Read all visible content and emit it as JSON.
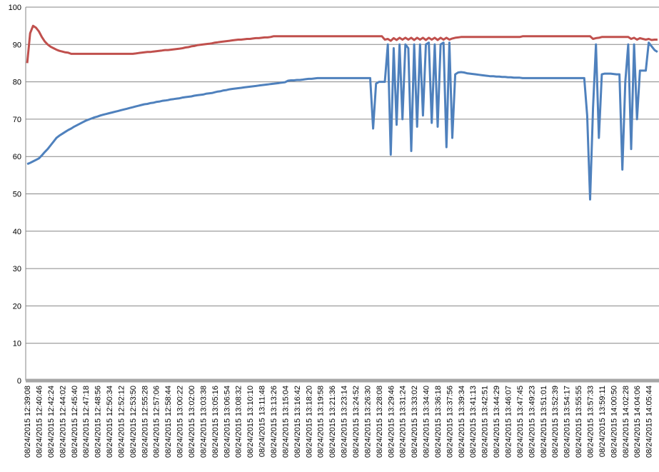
{
  "chart_data": {
    "type": "line",
    "categories": [
      "08/24/2015 12:39:08",
      null,
      null,
      null,
      "08/24/2015 12:40:46",
      null,
      null,
      null,
      "08/24/2015 12:42:24",
      null,
      null,
      null,
      "08/24/2015 12:44:02",
      null,
      null,
      null,
      "08/24/2015 12:45:40",
      null,
      null,
      null,
      "08/24/2015 12:47:18",
      null,
      null,
      null,
      "08/24/2015 12:48:56",
      null,
      null,
      null,
      "08/24/2015 12:50:34",
      null,
      null,
      null,
      "08/24/2015 12:52:12",
      null,
      null,
      null,
      "08/24/2015 12:53:50",
      null,
      null,
      null,
      "08/24/2015 12:55:28",
      null,
      null,
      null,
      "08/24/2015 12:57:06",
      null,
      null,
      null,
      "08/24/2015 12:58:44",
      null,
      null,
      null,
      "08/24/2015 13:00:22",
      null,
      null,
      null,
      "08/24/2015 13:02:00",
      null,
      null,
      null,
      "08/24/2015 13:03:38",
      null,
      null,
      null,
      "08/24/2015 13:05:16",
      null,
      null,
      null,
      "08/24/2015 13:06:54",
      null,
      null,
      null,
      "08/24/2015 13:08:32",
      null,
      null,
      null,
      "08/24/2015 13:10:10",
      null,
      null,
      null,
      "08/24/2015 13:11:48",
      null,
      null,
      null,
      "08/24/2015 13:13:26",
      null,
      null,
      null,
      "08/24/2015 13:15:04",
      null,
      null,
      null,
      "08/24/2015 13:16:42",
      null,
      null,
      null,
      "08/24/2015 13:18:20",
      null,
      null,
      null,
      "08/24/2015 13:19:58",
      null,
      null,
      null,
      "08/24/2015 13:21:36",
      null,
      null,
      null,
      "08/24/2015 13:23:14",
      null,
      null,
      null,
      "08/24/2015 13:24:52",
      null,
      null,
      null,
      "08/24/2015 13:26:30",
      null,
      null,
      null,
      "08/24/2015 13:28:08",
      null,
      null,
      null,
      "08/24/2015 13:29:46",
      null,
      null,
      null,
      "08/24/2015 13:31:24",
      null,
      null,
      null,
      "08/24/2015 13:33:02",
      null,
      null,
      null,
      "08/24/2015 13:34:40",
      null,
      null,
      null,
      "08/24/2015 13:36:18",
      null,
      null,
      null,
      "08/24/2015 13:37:56",
      null,
      null,
      null,
      "08/24/2015 13:39:34",
      null,
      null,
      null,
      "08/24/2015 13:41:13",
      null,
      null,
      null,
      "08/24/2015 13:42:51",
      null,
      null,
      null,
      "08/24/2015 13:44:29",
      null,
      null,
      null,
      "08/24/2015 13:46:07",
      null,
      null,
      null,
      "08/24/2015 13:47:45",
      null,
      null,
      null,
      "08/24/2015 13:49:23",
      null,
      null,
      null,
      "08/24/2015 13:51:01",
      null,
      null,
      null,
      "08/24/2015 13:52:39",
      null,
      null,
      null,
      "08/24/2015 13:54:17",
      null,
      null,
      null,
      "08/24/2015 13:55:55",
      null,
      null,
      null,
      "08/24/2015 13:57:33",
      null,
      null,
      null,
      "08/24/2015 13:59:11",
      null,
      null,
      null,
      "08/24/2015 14:00:50",
      null,
      null,
      null,
      "08/24/2015 14:02:28",
      null,
      null,
      null,
      "08/24/2015 14:04:06",
      null,
      null,
      null,
      "08/24/2015 14:05:44",
      null,
      null,
      null
    ],
    "series": [
      {
        "color": "#c0504d",
        "values": [
          85,
          93,
          95,
          94.5,
          93.5,
          92,
          90.8,
          90,
          89.4,
          89,
          88.6,
          88.3,
          88.1,
          87.9,
          87.8,
          87.5,
          87.5,
          87.5,
          87.5,
          87.5,
          87.5,
          87.5,
          87.5,
          87.5,
          87.5,
          87.5,
          87.5,
          87.5,
          87.5,
          87.5,
          87.5,
          87.5,
          87.5,
          87.5,
          87.5,
          87.5,
          87.5,
          87.6,
          87.7,
          87.8,
          87.9,
          88,
          88,
          88.1,
          88.2,
          88.3,
          88.4,
          88.5,
          88.5,
          88.6,
          88.7,
          88.8,
          88.9,
          89,
          89.2,
          89.3,
          89.5,
          89.6,
          89.8,
          89.9,
          90,
          90.1,
          90.2,
          90.3,
          90.5,
          90.6,
          90.7,
          90.8,
          90.9,
          91,
          91.1,
          91.2,
          91.3,
          91.3,
          91.4,
          91.5,
          91.5,
          91.6,
          91.7,
          91.7,
          91.8,
          91.9,
          91.9,
          92,
          92.2,
          92.2,
          92.2,
          92.2,
          92.2,
          92.2,
          92.2,
          92.2,
          92.2,
          92.2,
          92.2,
          92.2,
          92.2,
          92.2,
          92.2,
          92.2,
          92.2,
          92.2,
          92.2,
          92.2,
          92.2,
          92.2,
          92.2,
          92.2,
          92.2,
          92.2,
          92.2,
          92.2,
          92.2,
          92.2,
          92.2,
          92.2,
          92.2,
          92.2,
          92.2,
          92.2,
          92.2,
          92.2,
          91.3,
          91.5,
          91,
          91.7,
          91.2,
          91.8,
          91.3,
          91.8,
          91.3,
          91.8,
          91.2,
          91.8,
          91.3,
          91.8,
          91.2,
          91.8,
          91.3,
          91.8,
          91.2,
          91.8,
          91.3,
          91.8,
          91.3,
          91.6,
          91.8,
          91.9,
          92,
          92,
          92,
          92,
          92,
          92,
          92,
          92,
          92,
          92,
          92,
          92,
          92,
          92,
          92,
          92,
          92,
          92,
          92,
          92,
          92,
          92.2,
          92.2,
          92.2,
          92.2,
          92.2,
          92.2,
          92.2,
          92.2,
          92.2,
          92.2,
          92.2,
          92.2,
          92.2,
          92.2,
          92.2,
          92.2,
          92.2,
          92.2,
          92.2,
          92.2,
          92.2,
          92.2,
          92.2,
          92.2,
          91.5,
          91.7,
          91.8,
          92,
          92,
          92,
          92,
          92,
          92,
          92,
          92,
          92,
          92,
          91.5,
          91.8,
          91.3,
          91.7,
          91.5,
          91.3,
          91.5,
          91.2,
          91.3,
          91.3
        ]
      },
      {
        "color": "#4f81bd",
        "values": [
          58,
          58.3,
          58.7,
          59.1,
          59.5,
          60.3,
          61.2,
          62,
          63,
          64,
          65,
          65.6,
          66.1,
          66.6,
          67.1,
          67.5,
          68,
          68.4,
          68.8,
          69.2,
          69.6,
          69.9,
          70.2,
          70.5,
          70.7,
          71,
          71.2,
          71.4,
          71.6,
          71.8,
          72,
          72.2,
          72.4,
          72.6,
          72.8,
          73,
          73.2,
          73.4,
          73.6,
          73.8,
          74,
          74.1,
          74.3,
          74.4,
          74.6,
          74.7,
          74.9,
          75,
          75.1,
          75.3,
          75.4,
          75.5,
          75.6,
          75.8,
          75.9,
          76,
          76.1,
          76.3,
          76.4,
          76.5,
          76.6,
          76.8,
          76.9,
          77,
          77.2,
          77.4,
          77.5,
          77.7,
          77.8,
          78,
          78.1,
          78.2,
          78.3,
          78.4,
          78.5,
          78.6,
          78.7,
          78.8,
          78.9,
          79,
          79.1,
          79.2,
          79.3,
          79.4,
          79.5,
          79.6,
          79.7,
          79.8,
          79.9,
          80.3,
          80.4,
          80.4,
          80.5,
          80.5,
          80.6,
          80.7,
          80.8,
          80.8,
          80.9,
          81,
          81,
          81,
          81,
          81,
          81,
          81,
          81,
          81,
          81,
          81,
          81,
          81,
          81,
          81,
          81,
          81,
          81,
          81,
          67.5,
          79.5,
          80,
          80,
          80,
          90,
          60.5,
          89,
          68.5,
          90,
          70,
          90,
          89,
          61.5,
          90,
          68,
          90,
          71,
          90,
          90.5,
          69,
          90,
          68,
          90,
          90.5,
          62.5,
          90.5,
          65,
          82,
          82.5,
          82.6,
          82.5,
          82.3,
          82.2,
          82.1,
          82,
          81.9,
          81.8,
          81.7,
          81.6,
          81.5,
          81.5,
          81.4,
          81.4,
          81.3,
          81.3,
          81.2,
          81.2,
          81.1,
          81.1,
          81.1,
          81,
          81,
          81,
          81,
          81,
          81,
          81,
          81,
          81,
          81,
          81,
          81,
          81,
          81,
          81,
          81,
          81,
          81,
          81,
          81,
          81,
          81,
          71,
          48.5,
          73,
          90,
          65,
          82,
          82.2,
          82.2,
          82.2,
          82.1,
          82,
          82,
          56.5,
          80,
          90,
          62,
          90,
          70,
          83,
          83,
          83,
          90.5,
          89.5,
          88.5,
          88
        ]
      }
    ],
    "ylim": [
      0,
      100
    ],
    "yticks": [
      0,
      10,
      20,
      30,
      40,
      50,
      60,
      70,
      80,
      90,
      100
    ],
    "grid": true
  }
}
